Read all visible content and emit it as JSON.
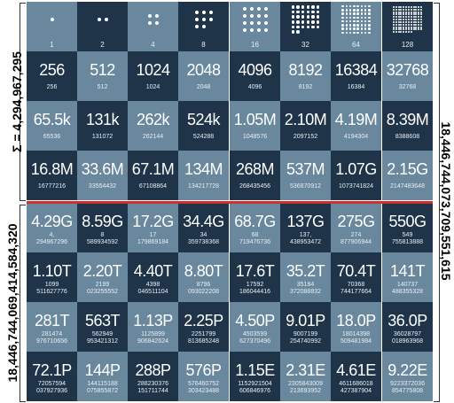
{
  "labels": {
    "top_sum": "Σ = 4,294,967,295",
    "bottom_left": "18,446,744,069,414,584,320",
    "right": "18,446,744,073,709,551,615"
  },
  "colors": {
    "dark": "#1f3448",
    "light": "#6a889d",
    "divider": "#d0312d"
  },
  "dot_row": [
    "1",
    "2",
    "4",
    "8",
    "16",
    "32",
    "64",
    "128"
  ],
  "rows": [
    [
      {
        "big": "256",
        "small": "256"
      },
      {
        "big": "512",
        "small": "512"
      },
      {
        "big": "1024",
        "small": "1024"
      },
      {
        "big": "2048",
        "small": "2048"
      },
      {
        "big": "4096",
        "small": "4096"
      },
      {
        "big": "8192",
        "small": "8192"
      },
      {
        "big": "16384",
        "small": "16384"
      },
      {
        "big": "32768",
        "small": "32768"
      }
    ],
    [
      {
        "big": "65.5k",
        "small": "65536"
      },
      {
        "big": "131k",
        "small": "131072"
      },
      {
        "big": "262k",
        "small": "262144"
      },
      {
        "big": "524k",
        "small": "524288"
      },
      {
        "big": "1.05M",
        "small": "1048576"
      },
      {
        "big": "2.10M",
        "small": "2097152"
      },
      {
        "big": "4.19M",
        "small": "4194304"
      },
      {
        "big": "8.39M",
        "small": "8388608"
      }
    ],
    [
      {
        "big": "16.8M",
        "small": "16777216"
      },
      {
        "big": "33.6M",
        "small": "33554432"
      },
      {
        "big": "67.1M",
        "small": "67108864"
      },
      {
        "big": "134M",
        "small": "134217728"
      },
      {
        "big": "268M",
        "small": "268435456"
      },
      {
        "big": "537M",
        "small": "536870912"
      },
      {
        "big": "1.07G",
        "small": "1073741824"
      },
      {
        "big": "2.15G",
        "small": "2147483648"
      }
    ],
    [
      {
        "big": "4.29G",
        "small": "4,\n294967296"
      },
      {
        "big": "8.59G",
        "small": "8\n589934592"
      },
      {
        "big": "17.2G",
        "small": "17\n179869184"
      },
      {
        "big": "34.4G",
        "small": "34\n359738368"
      },
      {
        "big": "68.7G",
        "small": "68\n719476736"
      },
      {
        "big": "137G",
        "small": "137,\n438953472"
      },
      {
        "big": "275G",
        "small": "274\n877906944"
      },
      {
        "big": "550G",
        "small": "549\n755813888"
      }
    ],
    [
      {
        "big": "1.10T",
        "small": "1099\n511627776"
      },
      {
        "big": "2.20T",
        "small": "2199\n023255552"
      },
      {
        "big": "4.40T",
        "small": "4398\n046511104"
      },
      {
        "big": "8.80T",
        "small": "8796\n093022208"
      },
      {
        "big": "17.6T",
        "small": "17592\n186044416"
      },
      {
        "big": "35.2T",
        "small": "35184\n372088832"
      },
      {
        "big": "70.4T",
        "small": "70368\n744177664"
      },
      {
        "big": "141T",
        "small": "140737\n488355328"
      }
    ],
    [
      {
        "big": "281T",
        "small": "281474\n976710656"
      },
      {
        "big": "563T",
        "small": "562949\n953421312"
      },
      {
        "big": "1.13P",
        "small": "1125899\n906842624"
      },
      {
        "big": "2.25P",
        "small": "2251799\n813685248"
      },
      {
        "big": "4.50P",
        "small": "4503599\n627370496"
      },
      {
        "big": "9.01P",
        "small": "9007199\n254740992"
      },
      {
        "big": "18.0P",
        "small": "18014398\n509481984"
      },
      {
        "big": "36.0P",
        "small": "36028797\n018963968"
      }
    ],
    [
      {
        "big": "72.1P",
        "small": "72057594\n037927936"
      },
      {
        "big": "144P",
        "small": "144115188\n075855872"
      },
      {
        "big": "288P",
        "small": "288230376\n151711744"
      },
      {
        "big": "576P",
        "small": "576460752\n303423488"
      },
      {
        "big": "1.15E",
        "small": "1152921504\n606846976"
      },
      {
        "big": "2.31E",
        "small": "2305843009\n213693952"
      },
      {
        "big": "4.61E",
        "small": "4611686018\n427387904"
      },
      {
        "big": "9.22E",
        "small": "9223372036\n854775808"
      }
    ]
  ]
}
